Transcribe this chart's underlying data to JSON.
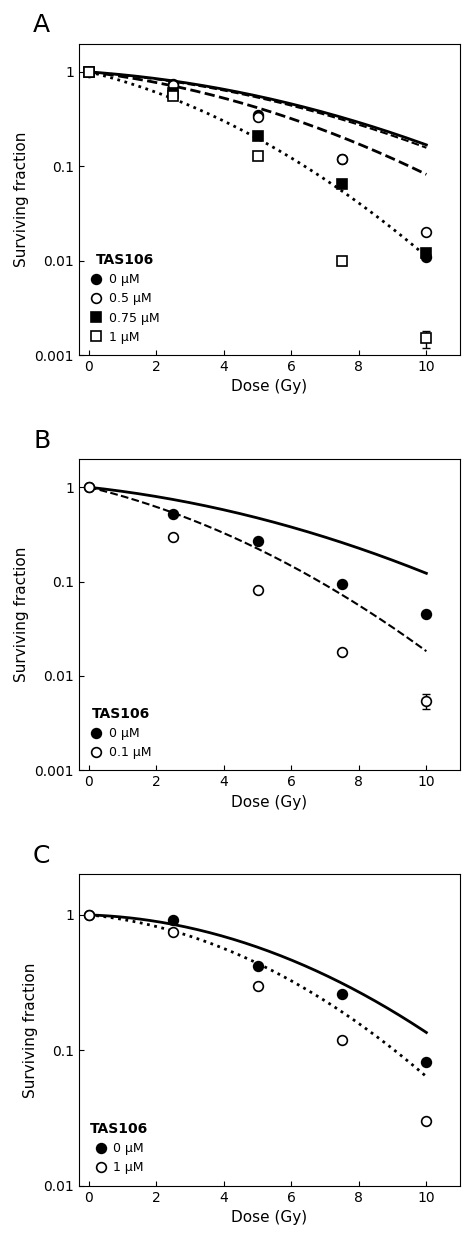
{
  "panel_A": {
    "label": "A",
    "xlabel": "Dose (Gy)",
    "ylabel": "Surviving fraction",
    "ylim": [
      0.001,
      2
    ],
    "xlim": [
      -0.3,
      11
    ],
    "yticks": [
      0.001,
      0.01,
      0.1,
      1
    ],
    "xticks": [
      0,
      2,
      4,
      6,
      8,
      10
    ],
    "series": [
      {
        "label": "0 μM",
        "marker": "o",
        "filled": true,
        "linestyle": "solid",
        "linewidth": 2.0,
        "x_data": [
          0,
          2.5,
          5,
          7.5,
          10
        ],
        "y_data": [
          1.0,
          0.75,
          0.35,
          0.12,
          0.011
        ],
        "yerr": [
          0,
          0,
          0,
          0,
          0
        ]
      },
      {
        "label": "0.5 μM",
        "marker": "o",
        "filled": false,
        "linestyle": "dashed",
        "linewidth": 1.5,
        "x_data": [
          0,
          2.5,
          5,
          7.5,
          10
        ],
        "y_data": [
          1.0,
          0.72,
          0.33,
          0.12,
          0.02
        ],
        "yerr": [
          0,
          0,
          0,
          0,
          0
        ]
      },
      {
        "label": "0.75 μM",
        "marker": "s",
        "filled": true,
        "linestyle": "dashed",
        "linewidth": 1.5,
        "x_data": [
          0,
          2.5,
          5,
          7.5,
          10
        ],
        "y_data": [
          1.0,
          0.6,
          0.21,
          0.065,
          0.012
        ],
        "yerr": [
          0,
          0,
          0,
          0,
          0
        ]
      },
      {
        "label": "1 μM",
        "marker": "s",
        "filled": false,
        "linestyle": "dotted",
        "linewidth": 1.5,
        "x_data": [
          0,
          2.5,
          5,
          7.5,
          10
        ],
        "y_data": [
          1.0,
          0.55,
          0.13,
          0.01,
          0.0015
        ],
        "yerr": [
          0,
          0,
          0.01,
          0.001,
          0.0003
        ]
      }
    ],
    "fit_series": [
      {
        "linestyle": "solid",
        "linewidth": 2.0,
        "alpha_beta": [
          0.058,
          0.012
        ],
        "color": "black"
      },
      {
        "linestyle": "dashed",
        "linewidth": 1.5,
        "alpha_beta": [
          0.065,
          0.012
        ],
        "color": "black"
      },
      {
        "linestyle": "dashed",
        "linewidth": 2.0,
        "alpha_beta": [
          0.1,
          0.015
        ],
        "color": "black"
      },
      {
        "linestyle": "dotted",
        "linewidth": 2.0,
        "alpha_beta": [
          0.2,
          0.025
        ],
        "color": "black"
      }
    ]
  },
  "panel_B": {
    "label": "B",
    "xlabel": "Dose (Gy)",
    "ylabel": "Surviving fraction",
    "ylim": [
      0.001,
      2
    ],
    "xlim": [
      -0.3,
      11
    ],
    "yticks": [
      0.001,
      0.01,
      0.1,
      1
    ],
    "xticks": [
      0,
      2,
      4,
      6,
      8,
      10
    ],
    "series": [
      {
        "label": "0 μM",
        "marker": "o",
        "filled": true,
        "linestyle": "solid",
        "linewidth": 2.0,
        "x_data": [
          0,
          2.5,
          5,
          7.5,
          10
        ],
        "y_data": [
          1.0,
          0.52,
          0.27,
          0.095,
          0.045
        ],
        "yerr": [
          0,
          0,
          0,
          0,
          0
        ]
      },
      {
        "label": "0.1 μM",
        "marker": "o",
        "filled": false,
        "linestyle": "dashed",
        "linewidth": 1.5,
        "x_data": [
          0,
          2.5,
          5,
          7.5,
          10
        ],
        "y_data": [
          1.0,
          0.3,
          0.082,
          0.018,
          0.0055
        ],
        "yerr": [
          0,
          0,
          0,
          0,
          0.001
        ]
      }
    ],
    "fit_series": [
      {
        "linestyle": "solid",
        "linewidth": 2.0,
        "alpha_beta": [
          0.09,
          0.012
        ],
        "color": "black"
      },
      {
        "linestyle": "dashed",
        "linewidth": 1.5,
        "alpha_beta": [
          0.2,
          0.02
        ],
        "color": "black"
      }
    ]
  },
  "panel_C": {
    "label": "C",
    "xlabel": "Dose (Gy)",
    "ylabel": "Surviving fraction",
    "ylim": [
      0.01,
      2
    ],
    "xlim": [
      -0.3,
      11
    ],
    "yticks": [
      0.01,
      0.1,
      1
    ],
    "xticks": [
      0,
      2,
      4,
      6,
      8,
      10
    ],
    "series": [
      {
        "label": "0 μM",
        "marker": "o",
        "filled": true,
        "linestyle": "solid",
        "linewidth": 2.0,
        "x_data": [
          0,
          2.5,
          5,
          7.5,
          10
        ],
        "y_data": [
          1.0,
          0.92,
          0.42,
          0.26,
          0.082
        ],
        "yerr": [
          0,
          0,
          0,
          0,
          0
        ]
      },
      {
        "label": "1 μM",
        "marker": "o",
        "filled": false,
        "linestyle": "dotted",
        "linewidth": 2.0,
        "x_data": [
          0,
          2.5,
          5,
          7.5,
          10
        ],
        "y_data": [
          1.0,
          0.75,
          0.3,
          0.12,
          0.03
        ],
        "yerr": [
          0,
          0,
          0,
          0,
          0
        ]
      }
    ],
    "fit_series": [
      {
        "linestyle": "solid",
        "linewidth": 2.0,
        "alpha_beta": [
          0.02,
          0.018
        ],
        "color": "black"
      },
      {
        "linestyle": "dotted",
        "linewidth": 2.0,
        "alpha_beta": [
          0.055,
          0.022
        ],
        "color": "black"
      }
    ]
  }
}
